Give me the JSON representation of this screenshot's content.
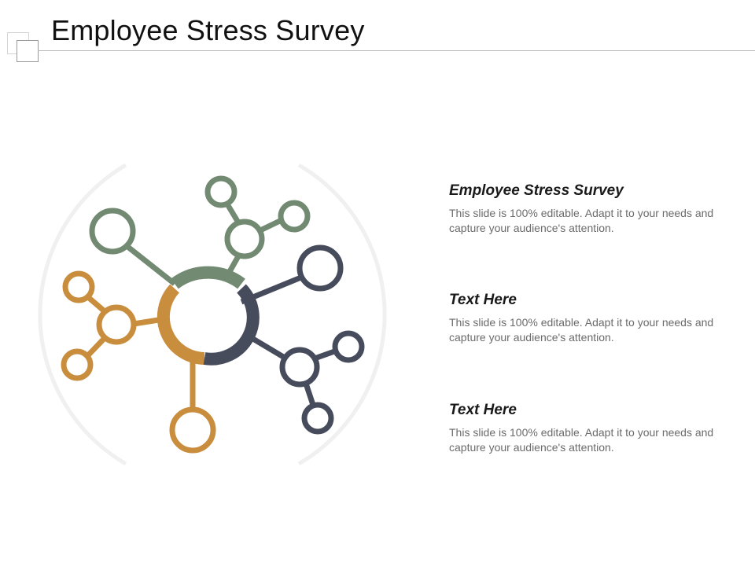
{
  "slide": {
    "title": "Employee Stress Survey"
  },
  "diagram": {
    "colors": {
      "green": "#728a72",
      "orange": "#c98d3e",
      "navy": "#474c5c",
      "ring": "#f0f0f0"
    }
  },
  "blocks": [
    {
      "heading": "Employee Stress Survey",
      "body": "This slide is 100% editable. Adapt it to your needs and capture your audience's attention."
    },
    {
      "heading": "Text Here",
      "body": "This slide is 100% editable. Adapt it to your needs and capture your audience's attention."
    },
    {
      "heading": "Text Here",
      "body": "This slide is 100% editable. Adapt it to your needs and capture your audience's attention."
    }
  ]
}
